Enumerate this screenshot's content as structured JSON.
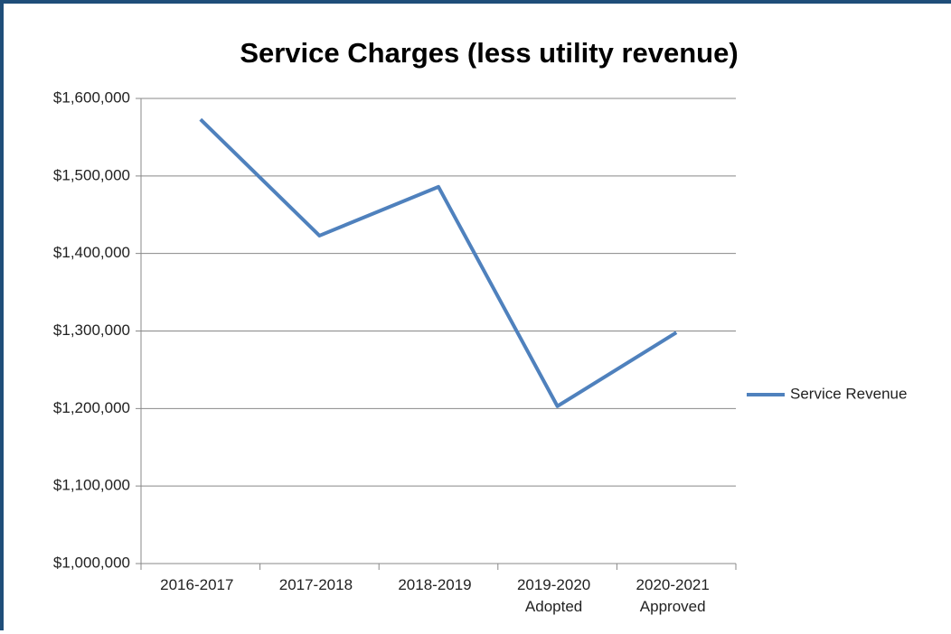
{
  "chart_data": {
    "type": "line",
    "title": "Service Charges (less utility revenue)",
    "categories": [
      "2016-2017",
      "2017-2018",
      "2018-2019",
      "2019-2020 Adopted",
      "2020-2021 Approved"
    ],
    "series": [
      {
        "name": "Service Revenue",
        "color": "#4f81bd",
        "values": [
          1573000,
          1423000,
          1486000,
          1203000,
          1298000
        ]
      }
    ],
    "ylim": [
      1000000,
      1600000
    ],
    "yticks": [
      {
        "value": 1000000,
        "label": "$1,000,000"
      },
      {
        "value": 1100000,
        "label": "$1,100,000"
      },
      {
        "value": 1200000,
        "label": "$1,200,000"
      },
      {
        "value": 1300000,
        "label": "$1,300,000"
      },
      {
        "value": 1400000,
        "label": "$1,400,000"
      },
      {
        "value": 1500000,
        "label": "$1,500,000"
      },
      {
        "value": 1600000,
        "label": "$1,600,000"
      }
    ],
    "grid": true,
    "legend": "right"
  }
}
